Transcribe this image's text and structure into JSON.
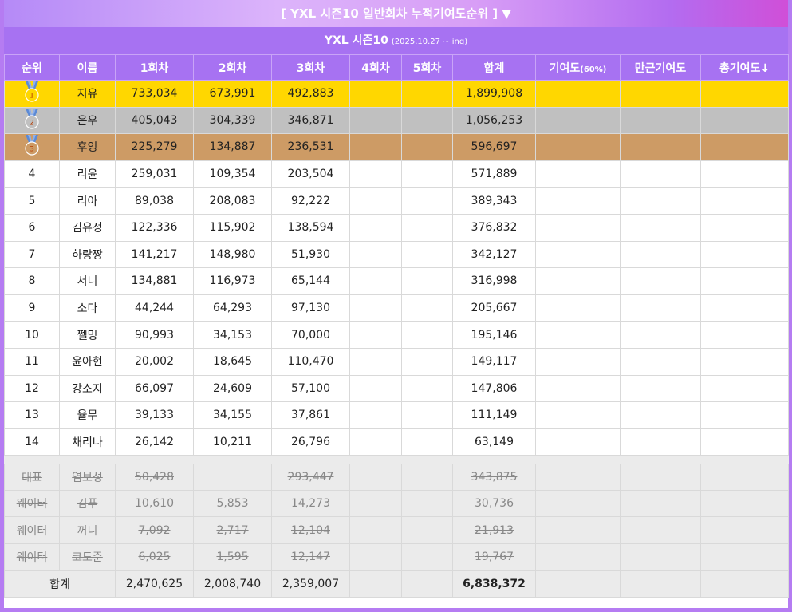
{
  "header": {
    "title": "[ YXL 시즌10 일반회차 누적기여도순위 ] ▼",
    "season_label": "YXL 시즌10",
    "season_range": "(2025.10.27 ~ ing)"
  },
  "columns": [
    "순위",
    "이름",
    "1회차",
    "2회차",
    "3회차",
    "4회차",
    "5회차",
    "합계",
    "기여도",
    "(60%)",
    "만근기여도",
    "총기여도↓"
  ],
  "colors": {
    "header": "#a772f2",
    "gold": "#ffd700",
    "silver": "#c0c0c0",
    "bronze": "#cd9b65",
    "medal_ribbon": "#5b8ad6"
  },
  "medal_icons": [
    "gold-medal-icon",
    "silver-medal-icon",
    "bronze-medal-icon"
  ],
  "rows": [
    {
      "rank": "1",
      "name": "지유",
      "r1": "733,034",
      "r2": "673,991",
      "r3": "492,883",
      "r4": "",
      "r5": "",
      "sum": "1,899,908"
    },
    {
      "rank": "2",
      "name": "은우",
      "r1": "405,043",
      "r2": "304,339",
      "r3": "346,871",
      "r4": "",
      "r5": "",
      "sum": "1,056,253"
    },
    {
      "rank": "3",
      "name": "후잉",
      "r1": "225,279",
      "r2": "134,887",
      "r3": "236,531",
      "r4": "",
      "r5": "",
      "sum": "596,697"
    },
    {
      "rank": "4",
      "name": "리윤",
      "r1": "259,031",
      "r2": "109,354",
      "r3": "203,504",
      "r4": "",
      "r5": "",
      "sum": "571,889"
    },
    {
      "rank": "5",
      "name": "리아",
      "r1": "89,038",
      "r2": "208,083",
      "r3": "92,222",
      "r4": "",
      "r5": "",
      "sum": "389,343"
    },
    {
      "rank": "6",
      "name": "김유정",
      "r1": "122,336",
      "r2": "115,902",
      "r3": "138,594",
      "r4": "",
      "r5": "",
      "sum": "376,832"
    },
    {
      "rank": "7",
      "name": "하랑짱",
      "r1": "141,217",
      "r2": "148,980",
      "r3": "51,930",
      "r4": "",
      "r5": "",
      "sum": "342,127"
    },
    {
      "rank": "8",
      "name": "서니",
      "r1": "134,881",
      "r2": "116,973",
      "r3": "65,144",
      "r4": "",
      "r5": "",
      "sum": "316,998"
    },
    {
      "rank": "9",
      "name": "소다",
      "r1": "44,244",
      "r2": "64,293",
      "r3": "97,130",
      "r4": "",
      "r5": "",
      "sum": "205,667"
    },
    {
      "rank": "10",
      "name": "쩰밍",
      "r1": "90,993",
      "r2": "34,153",
      "r3": "70,000",
      "r4": "",
      "r5": "",
      "sum": "195,146"
    },
    {
      "rank": "11",
      "name": "윤아현",
      "r1": "20,002",
      "r2": "18,645",
      "r3": "110,470",
      "r4": "",
      "r5": "",
      "sum": "149,117"
    },
    {
      "rank": "12",
      "name": "강소지",
      "r1": "66,097",
      "r2": "24,609",
      "r3": "57,100",
      "r4": "",
      "r5": "",
      "sum": "147,806"
    },
    {
      "rank": "13",
      "name": "율무",
      "r1": "39,133",
      "r2": "34,155",
      "r3": "37,861",
      "r4": "",
      "r5": "",
      "sum": "111,149"
    },
    {
      "rank": "14",
      "name": "채리나",
      "r1": "26,142",
      "r2": "10,211",
      "r3": "26,796",
      "r4": "",
      "r5": "",
      "sum": "63,149"
    }
  ],
  "extras": [
    {
      "role": "대표",
      "name": "염보성",
      "r1": "50,428",
      "r2": "",
      "r3": "293,447",
      "sum": "343,875"
    },
    {
      "role": "웨이터",
      "name": "김푸",
      "r1": "10,610",
      "r2": "5,853",
      "r3": "14,273",
      "sum": "30,736"
    },
    {
      "role": "웨이터",
      "name": "꺼니",
      "r1": "7,092",
      "r2": "2,717",
      "r3": "12,104",
      "sum": "21,913"
    },
    {
      "role": "웨이터",
      "name": "코도준",
      "r1": "6,025",
      "r2": "1,595",
      "r3": "12,147",
      "sum": "19,767"
    }
  ],
  "totals": {
    "label": "합계",
    "r1": "2,470,625",
    "r2": "2,008,740",
    "r3": "2,359,007",
    "sum": "6,838,372"
  }
}
